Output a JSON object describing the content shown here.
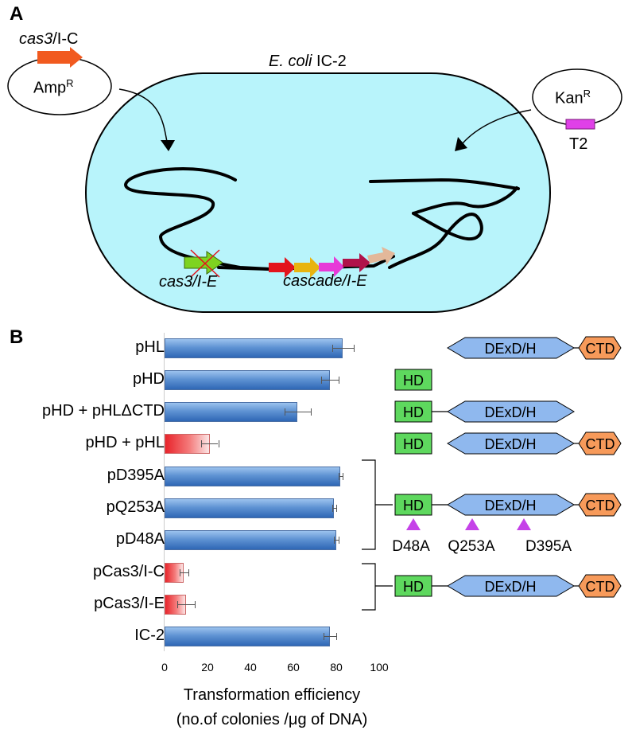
{
  "panel_a": {
    "label": "A",
    "host_label_italic": "E. coli",
    "host_label_rest": " IC-2",
    "plasmid_left": {
      "gene_italic": "cas3",
      "gene_rest": "/I-C",
      "marker": "Amp",
      "marker_sup": "R"
    },
    "plasmid_right": {
      "marker": "Kan",
      "marker_sup": "R",
      "target": "T2"
    },
    "locus_cas3": "cas3/I-E",
    "locus_cascade": "cascade/I-E",
    "colors": {
      "cell": "#b8f4fb",
      "cas3_ic": "#f15a1f",
      "t2": "#e040e8"
    }
  },
  "panel_b": {
    "label": "B",
    "domains": {
      "hd": "HD",
      "dexdh": "DExD/H",
      "ctd": "CTD"
    },
    "mutations": [
      "D48A",
      "Q253A",
      "D395A"
    ],
    "colors": {
      "hd": "#5ed85e",
      "dexdh": "#8fb8ee",
      "ctd": "#f79a5a",
      "mutation": "#c542e8"
    }
  },
  "chart_data": {
    "type": "bar",
    "orientation": "horizontal",
    "categories": [
      "pHL",
      "pHD",
      "pHD + pHLΔCTD",
      "pHD + pHL",
      "pD395A",
      "pQ253A",
      "pD48A",
      "pCas3/I-C",
      "pCas3/I-E",
      "IC-2"
    ],
    "values": [
      83,
      77,
      62,
      21,
      82,
      79,
      80,
      9,
      10,
      77
    ],
    "errors": [
      5,
      4,
      6,
      4,
      1,
      1,
      1,
      2,
      4,
      3
    ],
    "highlight": [
      false,
      false,
      false,
      true,
      false,
      false,
      false,
      true,
      true,
      false
    ],
    "xlim": [
      0,
      100
    ],
    "xticks": [
      "0",
      "20",
      "40",
      "60",
      "80",
      "100"
    ],
    "xlabel_line1": "Transformation efficiency",
    "xlabel_line2": "(no.of colonies /μg of DNA)"
  }
}
